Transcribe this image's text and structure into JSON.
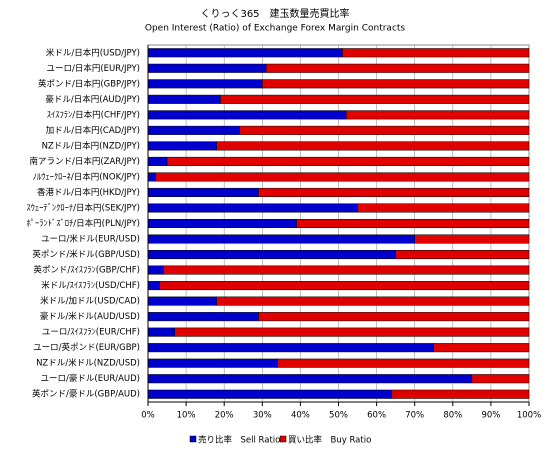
{
  "chart_data": {
    "type": "stacked-barh",
    "title": "くりっく365　建玉数量売買比率",
    "subtitle": "Open Interest (Ratio) of Exchange Forex Margin Contracts",
    "categories": [
      "米ドル/日本円(USD/JPY)",
      "ユーロ/日本円(EUR/JPY)",
      "英ポンド/日本円(GBP/JPY)",
      "豪ドル/日本円(AUD/JPY)",
      "ｽｲｽﾌﾗﾝ/日本円(CHF/JPY)",
      "加ドル/日本円(CAD/JPY)",
      "NZドル/日本円(NZD/JPY)",
      "南アランド/日本円(ZAR/JPY)",
      "ﾉﾙｳｪｰｸﾛｰﾈ/日本円(NOK/JPY)",
      "香港ドル/日本円(HKD/JPY)",
      "ｽｳｪｰﾃﾞﾝｸﾛｰﾅ/日本円(SEK/JPY)",
      "ﾎﾟｰﾗﾝﾄﾞｽﾞﾛﾁ/日本円(PLN/JPY)",
      "ユーロ/米ドル(EUR/USD)",
      "英ポンド/米ドル(GBP/USD)",
      "英ポンド/ｽｲｽﾌﾗﾝ(GBP/CHF)",
      "米ドル/ｽｲｽﾌﾗﾝ(USD/CHF)",
      "米ドル/加ドル(USD/CAD)",
      "豪ドル/米ドル(AUD/USD)",
      "ユーロ/ｽｲｽﾌﾗﾝ(EUR/CHF)",
      "ユーロ/英ポンド(EUR/GBP)",
      "NZドル/米ドル(NZD/USD)",
      "ユーロ/豪ドル(EUR/AUD)",
      "英ポンド/豪ドル(GBP/AUD)"
    ],
    "series": [
      {
        "name": "売り比率　Sell Ratio",
        "color": "#0000cc",
        "values": [
          51,
          31,
          30,
          19,
          52,
          24,
          18,
          5,
          2,
          29,
          55,
          39,
          70,
          65,
          4,
          3,
          18,
          29,
          7,
          75,
          34,
          85,
          64
        ]
      },
      {
        "name": "買い比率　Buy Ratio",
        "color": "#e00000",
        "values": [
          49,
          69,
          70,
          81,
          48,
          76,
          82,
          95,
          98,
          71,
          45,
          61,
          30,
          35,
          96,
          97,
          82,
          71,
          93,
          25,
          66,
          15,
          36
        ]
      }
    ],
    "xlim": [
      0,
      100
    ],
    "xticks": [
      {
        "value": 0,
        "label": "0%"
      },
      {
        "value": 10,
        "label": "10%"
      },
      {
        "value": 20,
        "label": "20%"
      },
      {
        "value": 30,
        "label": "30%"
      },
      {
        "value": 40,
        "label": "40%"
      },
      {
        "value": 50,
        "label": "50%"
      },
      {
        "value": 60,
        "label": "60%"
      },
      {
        "value": 70,
        "label": "70%"
      },
      {
        "value": 80,
        "label": "80%"
      },
      {
        "value": 90,
        "label": "90%"
      },
      {
        "value": 100,
        "label": "100%"
      }
    ],
    "grid": true,
    "legend": "bottom"
  }
}
